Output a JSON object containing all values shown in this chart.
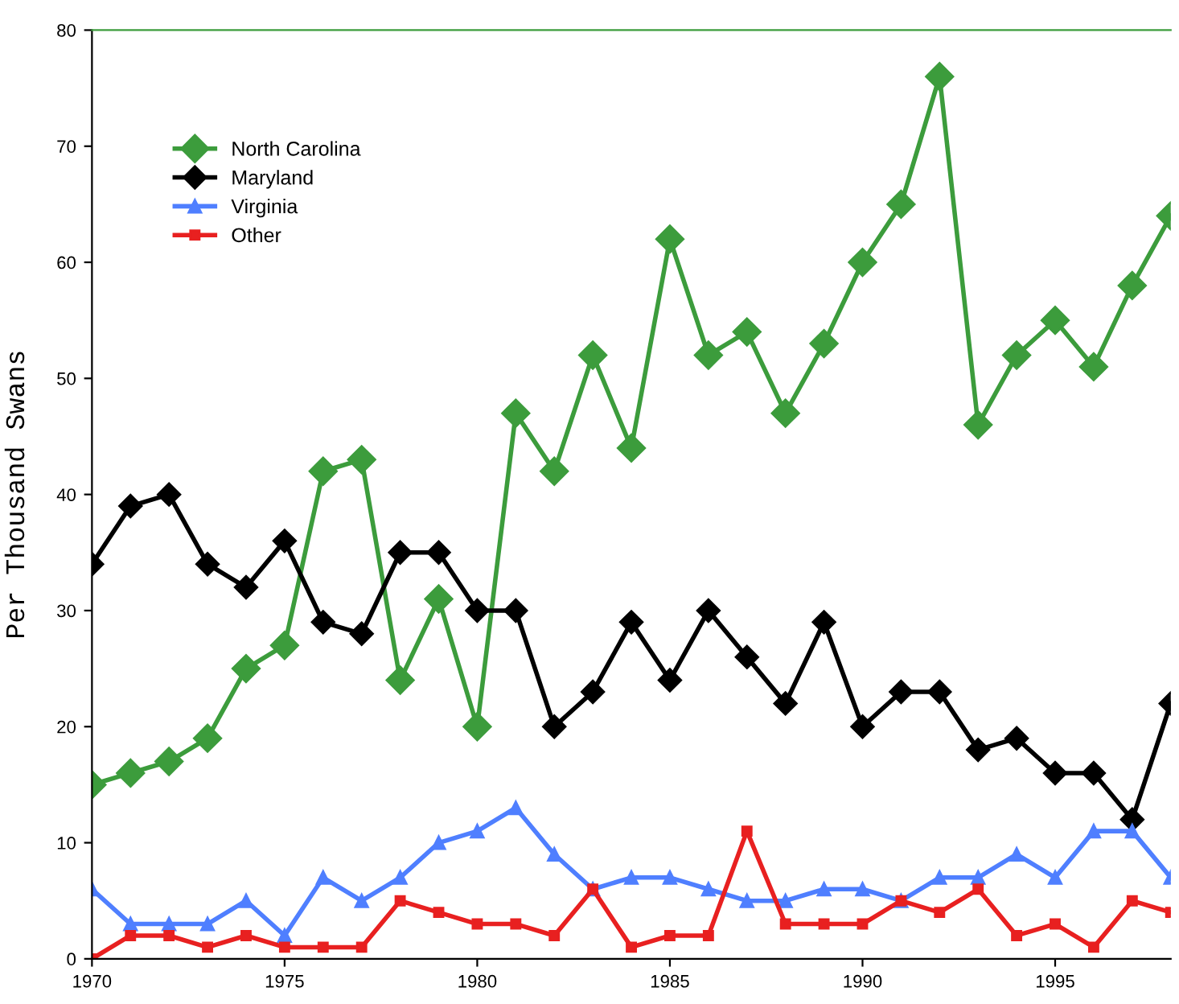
{
  "chart_data": {
    "type": "line",
    "ylabel": "Per Thousand Swans",
    "x": [
      1970,
      1971,
      1972,
      1973,
      1974,
      1975,
      1976,
      1977,
      1978,
      1979,
      1980,
      1981,
      1982,
      1983,
      1984,
      1985,
      1986,
      1987,
      1988,
      1989,
      1990,
      1991,
      1992,
      1993,
      1994,
      1995,
      1996,
      1997,
      1998
    ],
    "series": [
      {
        "name": "North Carolina",
        "color": "#3c9c3c",
        "marker": "diamond",
        "values": [
          15,
          16,
          17,
          19,
          25,
          27,
          42,
          43,
          24,
          31,
          20,
          47,
          42,
          52,
          44,
          62,
          52,
          54,
          47,
          53,
          60,
          65,
          76,
          46,
          52,
          55,
          51,
          58,
          64
        ]
      },
      {
        "name": "Maryland",
        "color": "#000000",
        "marker": "diamond",
        "values": [
          34,
          39,
          40,
          34,
          32,
          36,
          29,
          28,
          35,
          35,
          30,
          30,
          20,
          23,
          29,
          24,
          30,
          26,
          22,
          29,
          20,
          23,
          23,
          18,
          19,
          16,
          16,
          12,
          22
        ]
      },
      {
        "name": "Virginia",
        "color": "#4f7fff",
        "marker": "triangle",
        "values": [
          6,
          3,
          3,
          3,
          5,
          2,
          7,
          5,
          7,
          10,
          11,
          13,
          9,
          6,
          7,
          7,
          6,
          5,
          5,
          6,
          6,
          5,
          7,
          7,
          9,
          7,
          11,
          11,
          7
        ]
      },
      {
        "name": "Other",
        "color": "#e82020",
        "marker": "square",
        "values": [
          0,
          2,
          2,
          1,
          2,
          1,
          1,
          1,
          5,
          4,
          3,
          3,
          2,
          6,
          1,
          2,
          2,
          11,
          3,
          3,
          3,
          5,
          4,
          6,
          2,
          3,
          1,
          5,
          4
        ]
      }
    ],
    "xlim": [
      1970,
      1998
    ],
    "ylim": [
      0,
      80
    ],
    "xticks": [
      1970,
      1975,
      1980,
      1985,
      1990,
      1995
    ],
    "yticks": [
      0,
      10,
      20,
      30,
      40,
      50,
      60,
      70,
      80
    ],
    "legend": "top left",
    "grid": false,
    "line_style": "solid"
  }
}
